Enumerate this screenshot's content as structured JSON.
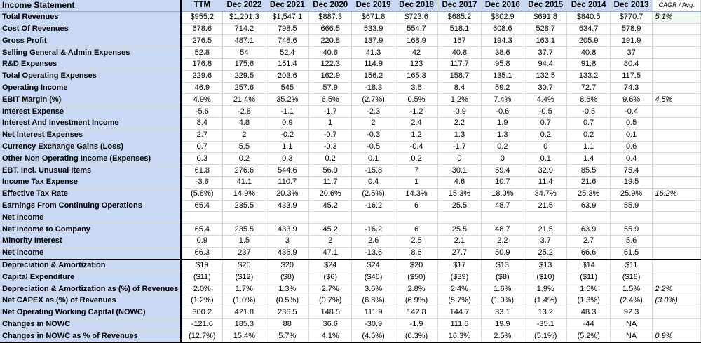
{
  "header": {
    "title": "Income Statement",
    "columns": [
      "TTM",
      "Dec 2022",
      "Dec 2021",
      "Dec 2020",
      "Dec 2019",
      "Dec 2018",
      "Dec 2017",
      "Dec 2016",
      "Dec 2015",
      "Dec 2014",
      "Dec 2013"
    ],
    "side": "CAGR / Avg."
  },
  "rows": [
    {
      "label": "Total Revenues",
      "values": [
        "$955.2",
        "$1,201.3",
        "$1,547.1",
        "$887.3",
        "$671.8",
        "$723.6",
        "$685.2",
        "$802.9",
        "$691.8",
        "$840.5",
        "$770.7"
      ],
      "side": "5.1%"
    },
    {
      "label": "Cost Of Revenues",
      "values": [
        "678.6",
        "714.2",
        "798.5",
        "666.5",
        "533.9",
        "554.7",
        "518.1",
        "608.6",
        "528.7",
        "634.7",
        "578.9"
      ],
      "side": ""
    },
    {
      "label": "Gross Profit",
      "values": [
        "276.5",
        "487.1",
        "748.6",
        "220.8",
        "137.9",
        "168.9",
        "167",
        "194.3",
        "163.1",
        "205.9",
        "191.9"
      ],
      "side": ""
    },
    {
      "label": "Selling General & Admin Expenses",
      "values": [
        "52.8",
        "54",
        "52.4",
        "40.6",
        "41.3",
        "42",
        "40.8",
        "38.6",
        "37.7",
        "40.8",
        "37"
      ],
      "side": ""
    },
    {
      "label": "R&D Expenses",
      "values": [
        "176.8",
        "175.6",
        "151.4",
        "122.3",
        "114.9",
        "123",
        "117.7",
        "95.8",
        "94.4",
        "91.8",
        "80.4"
      ],
      "side": ""
    },
    {
      "label": "Total Operating Expenses",
      "values": [
        "229.6",
        "229.5",
        "203.6",
        "162.9",
        "156.2",
        "165.3",
        "158.7",
        "135.1",
        "132.5",
        "133.2",
        "117.5"
      ],
      "side": ""
    },
    {
      "label": "Operating Income",
      "values": [
        "46.9",
        "257.6",
        "545",
        "57.9",
        "-18.3",
        "3.6",
        "8.4",
        "59.2",
        "30.7",
        "72.7",
        "74.3"
      ],
      "side": ""
    },
    {
      "label": "EBIT Margin (%)",
      "values": [
        "4.9%",
        "21.4%",
        "35.2%",
        "6.5%",
        "(2.7%)",
        "0.5%",
        "1.2%",
        "7.4%",
        "4.4%",
        "8.6%",
        "9.6%"
      ],
      "side": "4.5%"
    },
    {
      "label": "Interest Expense",
      "values": [
        "-5.6",
        "-2.8",
        "-1.1",
        "-1.7",
        "-2.3",
        "-1.2",
        "-0.9",
        "-0.6",
        "-0.5",
        "-0.5",
        "-0.4"
      ],
      "side": ""
    },
    {
      "label": "Interest And Investment Income",
      "values": [
        "8.4",
        "4.8",
        "0.9",
        "1",
        "2",
        "2.4",
        "2.2",
        "1.9",
        "0.7",
        "0.7",
        "0.5"
      ],
      "side": ""
    },
    {
      "label": "Net Interest Expenses",
      "values": [
        "2.7",
        "2",
        "-0.2",
        "-0.7",
        "-0.3",
        "1.2",
        "1.3",
        "1.3",
        "0.2",
        "0.2",
        "0.1"
      ],
      "side": ""
    },
    {
      "label": "Currency Exchange Gains (Loss)",
      "values": [
        "0.7",
        "5.5",
        "1.1",
        "-0.3",
        "-0.5",
        "-0.4",
        "-1.7",
        "0.2",
        "0",
        "1.1",
        "0.6"
      ],
      "side": ""
    },
    {
      "label": "Other Non Operating Income (Expenses)",
      "values": [
        "0.3",
        "0.2",
        "0.3",
        "0.2",
        "0.1",
        "0.2",
        "0",
        "0",
        "0.1",
        "1.4",
        "0.4"
      ],
      "side": ""
    },
    {
      "label": "EBT, Incl. Unusual Items",
      "values": [
        "61.8",
        "276.6",
        "544.6",
        "56.9",
        "-15.8",
        "7",
        "30.1",
        "59.4",
        "32.9",
        "85.5",
        "75.4"
      ],
      "side": ""
    },
    {
      "label": "Income Tax Expense",
      "values": [
        "-3.6",
        "41.1",
        "110.7",
        "11.7",
        "0.4",
        "1",
        "4.6",
        "10.7",
        "11.4",
        "21.6",
        "19.5"
      ],
      "side": ""
    },
    {
      "label": "Effective Tax Rate",
      "values": [
        "(5.8%)",
        "14.9%",
        "20.3%",
        "20.6%",
        "(2.5%)",
        "14.3%",
        "15.3%",
        "18.0%",
        "34.7%",
        "25.3%",
        "25.9%"
      ],
      "side": "16.2%"
    },
    {
      "label": "Earnings From Continuing Operations",
      "values": [
        "65.4",
        "235.5",
        "433.9",
        "45.2",
        "-16.2",
        "6",
        "25.5",
        "48.7",
        "21.5",
        "63.9",
        "55.9"
      ],
      "side": ""
    },
    {
      "label": "Net Income",
      "values": [
        "",
        "",
        "",
        "",
        "",
        "",
        "",
        "",
        "",
        "",
        ""
      ],
      "side": ""
    },
    {
      "label": "Net Income to Company",
      "values": [
        "65.4",
        "235.5",
        "433.9",
        "45.2",
        "-16.2",
        "6",
        "25.5",
        "48.7",
        "21.5",
        "63.9",
        "55.9"
      ],
      "side": ""
    },
    {
      "label": "Minority Interest",
      "values": [
        "0.9",
        "1.5",
        "3",
        "2",
        "2.6",
        "2.5",
        "2.1",
        "2.2",
        "3.7",
        "2.7",
        "5.6"
      ],
      "side": ""
    },
    {
      "label": "Net Income",
      "values": [
        "66.3",
        "237",
        "436.9",
        "47.1",
        "-13.6",
        "8.6",
        "27.7",
        "50.9",
        "25.2",
        "66.6",
        "61.5"
      ],
      "side": ""
    },
    {
      "label": "Depreciation & Amortization",
      "values": [
        "$19",
        "$20",
        "$20",
        "$24",
        "$24",
        "$20",
        "$17",
        "$13",
        "$13",
        "$14",
        "$11"
      ],
      "side": ""
    },
    {
      "label": "Capital Expenditure",
      "values": [
        "($11)",
        "($12)",
        "($8)",
        "($6)",
        "($46)",
        "($50)",
        "($39)",
        "($8)",
        "($10)",
        "($11)",
        "($18)"
      ],
      "side": ""
    },
    {
      "label": "Depreciation & Amortization as (%) of Revenues",
      "values": [
        "2.0%",
        "1.7%",
        "1.3%",
        "2.7%",
        "3.6%",
        "2.8%",
        "2.4%",
        "1.6%",
        "1.9%",
        "1.6%",
        "1.5%"
      ],
      "side": "2.2%"
    },
    {
      "label": "Net CAPEX as (%) of Revenues",
      "values": [
        "(1.2%)",
        "(1.0%)",
        "(0.5%)",
        "(0.7%)",
        "(6.8%)",
        "(6.9%)",
        "(5.7%)",
        "(1.0%)",
        "(1.4%)",
        "(1.3%)",
        "(2.4%)"
      ],
      "side": "(3.0%)"
    },
    {
      "label": "Net Operating Working Capital (NOWC)",
      "values": [
        "300.2",
        "421.8",
        "236.5",
        "148.5",
        "111.9",
        "142.8",
        "144.7",
        "33.1",
        "13.2",
        "48.3",
        "92.3"
      ],
      "side": ""
    },
    {
      "label": "Changes in NOWC",
      "values": [
        "-121.6",
        "185.3",
        "88",
        "36.6",
        "-30.9",
        "-1.9",
        "111.6",
        "19.9",
        "-35.1",
        "-44",
        "NA"
      ],
      "side": ""
    },
    {
      "label": "Changes in NOWC as % of Revenues",
      "values": [
        "(12.7%)",
        "15.4%",
        "5.7%",
        "4.1%",
        "(4.6%)",
        "(0.3%)",
        "16.3%",
        "2.5%",
        "(5.1%)",
        "(5.2%)",
        "NA"
      ],
      "side": "0.9%"
    }
  ]
}
